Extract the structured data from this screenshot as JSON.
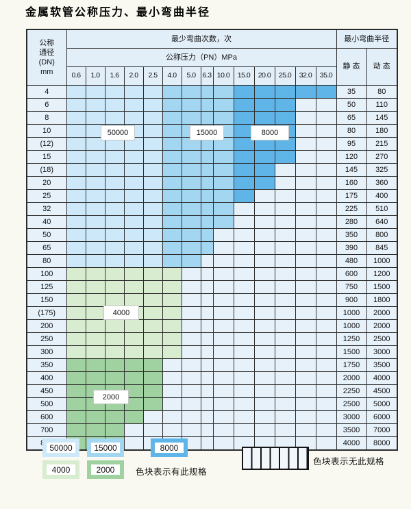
{
  "title": "金属软管公称压力、最小弯曲半径",
  "table": {
    "header": {
      "dn_lines": [
        "公称",
        "通径",
        "(DN)",
        "mm"
      ],
      "cycles_header": "最少弯曲次数，次",
      "pressure_header": "公称压力（PN）MPa",
      "radius_header": "最小弯曲半径",
      "static_label": "静 态",
      "dynamic_label": "动 态",
      "pressures": [
        "0.6",
        "1.0",
        "1.6",
        "2.0",
        "2.5",
        "4.0",
        "5.0",
        "6.3",
        "10.0",
        "15.0",
        "20.0",
        "25.0",
        "32.0",
        "35.0"
      ]
    },
    "rows": [
      {
        "dn": "4",
        "static": "35",
        "dynamic": "80",
        "zone": "blue",
        "colored_through": 14
      },
      {
        "dn": "6",
        "static": "50",
        "dynamic": "110",
        "zone": "blue",
        "colored_through": 12
      },
      {
        "dn": "8",
        "static": "65",
        "dynamic": "145",
        "zone": "blue",
        "colored_through": 12
      },
      {
        "dn": "10",
        "static": "80",
        "dynamic": "180",
        "zone": "blue",
        "colored_through": 12
      },
      {
        "dn": "(12)",
        "static": "95",
        "dynamic": "215",
        "zone": "blue",
        "colored_through": 12
      },
      {
        "dn": "15",
        "static": "120",
        "dynamic": "270",
        "zone": "blue",
        "colored_through": 12
      },
      {
        "dn": "(18)",
        "static": "145",
        "dynamic": "325",
        "zone": "blue",
        "colored_through": 11
      },
      {
        "dn": "20",
        "static": "160",
        "dynamic": "360",
        "zone": "blue",
        "colored_through": 11
      },
      {
        "dn": "25",
        "static": "175",
        "dynamic": "400",
        "zone": "blue",
        "colored_through": 10
      },
      {
        "dn": "32",
        "static": "225",
        "dynamic": "510",
        "zone": "blue",
        "colored_through": 9
      },
      {
        "dn": "40",
        "static": "280",
        "dynamic": "640",
        "zone": "blue",
        "colored_through": 9
      },
      {
        "dn": "50",
        "static": "350",
        "dynamic": "800",
        "zone": "blue",
        "colored_through": 8
      },
      {
        "dn": "65",
        "static": "390",
        "dynamic": "845",
        "zone": "blue",
        "colored_through": 8
      },
      {
        "dn": "80",
        "static": "480",
        "dynamic": "1000",
        "zone": "blue",
        "colored_through": 7
      },
      {
        "dn": "100",
        "static": "600",
        "dynamic": "1200",
        "zone": "green_4000",
        "colored_through": 6
      },
      {
        "dn": "125",
        "static": "750",
        "dynamic": "1500",
        "zone": "green_4000",
        "colored_through": 6
      },
      {
        "dn": "150",
        "static": "900",
        "dynamic": "1800",
        "zone": "green_4000",
        "colored_through": 6
      },
      {
        "dn": "(175)",
        "static": "1000",
        "dynamic": "2000",
        "zone": "green_4000",
        "colored_through": 6
      },
      {
        "dn": "200",
        "static": "1000",
        "dynamic": "2000",
        "zone": "green_4000",
        "colored_through": 6
      },
      {
        "dn": "250",
        "static": "1250",
        "dynamic": "2500",
        "zone": "green_4000",
        "colored_through": 6
      },
      {
        "dn": "300",
        "static": "1500",
        "dynamic": "3000",
        "zone": "green_4000",
        "colored_through": 6
      },
      {
        "dn": "350",
        "static": "1750",
        "dynamic": "3500",
        "zone": "green_2000",
        "colored_through": 5
      },
      {
        "dn": "400",
        "static": "2000",
        "dynamic": "4000",
        "zone": "green_2000",
        "colored_through": 5
      },
      {
        "dn": "450",
        "static": "2250",
        "dynamic": "4500",
        "zone": "green_2000",
        "colored_through": 5
      },
      {
        "dn": "500",
        "static": "2500",
        "dynamic": "5000",
        "zone": "green_2000",
        "colored_through": 5
      },
      {
        "dn": "600",
        "static": "3000",
        "dynamic": "6000",
        "zone": "green_2000",
        "colored_through": 4
      },
      {
        "dn": "700",
        "static": "3500",
        "dynamic": "7000",
        "zone": "green_2000",
        "colored_through": 3
      },
      {
        "dn": "800",
        "static": "4000",
        "dynamic": "8000",
        "zone": "green_2000",
        "colored_through": 3
      }
    ],
    "blue_column_zones": {
      "light_max_col": 5,
      "medium_max_col": 9
    }
  },
  "colors": {
    "blue_50000": "#cde8f8",
    "blue_15000": "#a3d6f1",
    "blue_8000": "#5fb5e8",
    "green_4000": "#d8ecd0",
    "green_2000": "#9fd2a0",
    "hatch_bg": "#edf4fb"
  },
  "zone_labels": {
    "l50000": "50000",
    "l15000": "15000",
    "l8000": "8000",
    "l4000": "4000",
    "l2000": "2000"
  },
  "legend": {
    "swatches": [
      {
        "label": "50000",
        "color_key": "blue_50000"
      },
      {
        "label": "15000",
        "color_key": "blue_15000"
      },
      {
        "label": "8000",
        "color_key": "blue_8000"
      },
      {
        "label": "4000",
        "color_key": "green_4000"
      },
      {
        "label": "2000",
        "color_key": "green_2000"
      }
    ],
    "has_spec_text": "色块表示有此规格",
    "no_spec_text": "色块表示无此规格"
  }
}
